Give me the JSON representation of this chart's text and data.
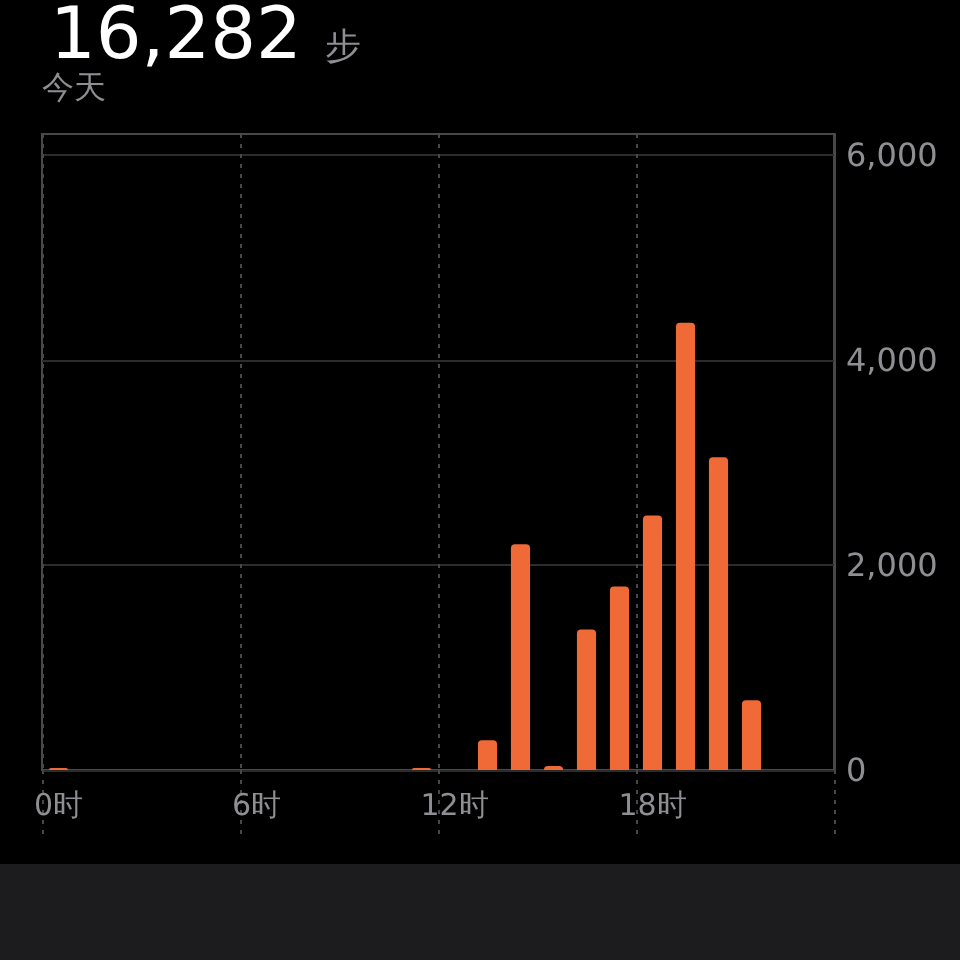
{
  "chart_data": {
    "type": "bar",
    "title": "16,282 步",
    "subtitle": "今天",
    "categories": [
      "0时",
      null,
      null,
      null,
      null,
      null,
      "6时",
      null,
      null,
      null,
      null,
      null,
      "12时",
      null,
      null,
      null,
      null,
      null,
      "18时",
      null,
      null,
      null,
      null,
      null
    ],
    "values": [
      20,
      null,
      null,
      null,
      null,
      null,
      null,
      null,
      null,
      null,
      null,
      20,
      null,
      290,
      2200,
      40,
      1370,
      1790,
      2480,
      4360,
      3050,
      680,
      null,
      null
    ],
    "color": "#ef6a37",
    "ylim": [
      0,
      6200
    ],
    "yticks": [
      0,
      {
        "value": 2000,
        "label": "2,000"
      },
      {
        "value": 4000,
        "label": "4,000"
      },
      {
        "value": 6000,
        "label": "6,000"
      }
    ],
    "grid": true
  }
}
